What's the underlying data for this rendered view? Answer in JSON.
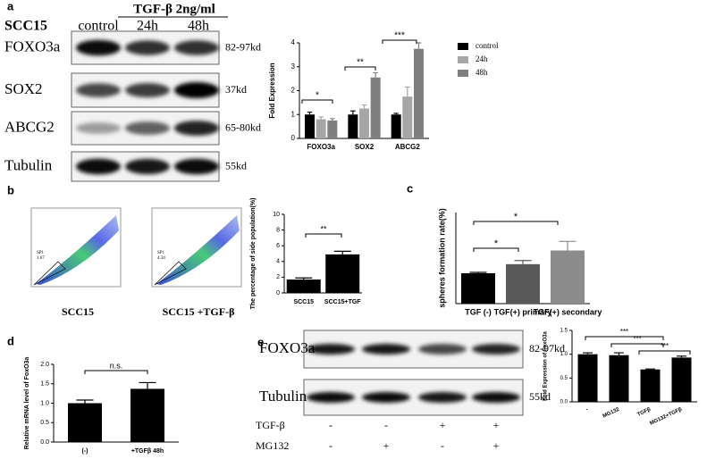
{
  "panel_labels": [
    "a",
    "b",
    "c",
    "d",
    "e"
  ],
  "blot_a": {
    "cell_line": "SCC15",
    "treatment": "TGF-β 2ng/ml",
    "lanes": [
      "control",
      "24h",
      "48h"
    ],
    "rows": [
      {
        "protein": "FOXO3a",
        "size": "82-97kd"
      },
      {
        "protein": "SOX2",
        "size": "37kd"
      },
      {
        "protein": "ABCG2",
        "size": "65-80kd"
      },
      {
        "protein": "Tubulin",
        "size": "55kd"
      }
    ]
  },
  "flow_b": {
    "plots": [
      {
        "label": "SCC15",
        "gate": "SP1",
        "percent": "1.67"
      },
      {
        "label": "SCC15 +TGF-β",
        "gate": "SP1",
        "percent": "4.34"
      }
    ]
  },
  "blot_e": {
    "rows": [
      {
        "protein": "FOXO3a",
        "size": "82-97kd"
      },
      {
        "protein": "Tubulin",
        "size": "55kd"
      }
    ],
    "conditions": [
      {
        "name": "TGF-β",
        "marks": [
          "-",
          "-",
          "+",
          "+"
        ]
      },
      {
        "name": "MG132",
        "marks": [
          "-",
          "+",
          "-",
          "+"
        ]
      }
    ]
  },
  "chart_data": [
    {
      "type": "bar",
      "y_label": "Fold Expression",
      "categories": [
        "FOXO3a",
        "SOX2",
        "ABCG2"
      ],
      "series": [
        {
          "name": "control",
          "color": "#000000",
          "values": [
            1.0,
            1.0,
            1.0
          ],
          "errors": [
            0.1,
            0.15,
            0.05
          ]
        },
        {
          "name": "24h",
          "color": "#a6a6a6",
          "values": [
            0.8,
            1.25,
            1.75
          ],
          "errors": [
            0.1,
            0.15,
            0.4
          ]
        },
        {
          "name": "48h",
          "color": "#7f7f7f",
          "values": [
            0.75,
            2.55,
            3.75
          ],
          "errors": [
            0.08,
            0.2,
            0.25
          ]
        }
      ],
      "ylim": [
        0,
        4
      ],
      "yticks": [
        0,
        1,
        2,
        3,
        4
      ],
      "annotations": [
        "*",
        "**",
        "***"
      ]
    },
    {
      "type": "bar",
      "y_label": "The percentage of side population(%)",
      "categories": [
        "SCC15",
        "SCC15+TGF"
      ],
      "values": [
        1.7,
        4.9
      ],
      "errors": [
        0.2,
        0.4
      ],
      "colors": [
        "#000000",
        "#000000"
      ],
      "ylim": [
        0,
        10
      ],
      "yticks": [
        0,
        2,
        4,
        6,
        8,
        10
      ],
      "annotations": [
        "**"
      ]
    },
    {
      "type": "bar",
      "y_label": "spheres formation rate(%)",
      "categories": [
        "TGF (-)",
        "TGF(+) primary",
        "TGF(+) secondary"
      ],
      "values": [
        1.0,
        1.3,
        1.75
      ],
      "errors": [
        0.03,
        0.12,
        0.3
      ],
      "colors": [
        "#000000",
        "#595959",
        "#8c8c8c"
      ],
      "ylim": [
        0,
        3
      ],
      "annotations": [
        "*",
        "*"
      ]
    },
    {
      "type": "bar",
      "y_label": "Relative mRNA level of FoxO3a",
      "categories": [
        "(-)",
        "+TGFβ 48h"
      ],
      "values": [
        1.0,
        1.37
      ],
      "errors": [
        0.08,
        0.16
      ],
      "colors": [
        "#000000",
        "#000000"
      ],
      "ylim": [
        0,
        2
      ],
      "yticks": [
        {
          "value": 0,
          "label": "0.0"
        },
        0.5,
        {
          "value": 1,
          "label": "1.0"
        },
        1.5,
        {
          "value": 2,
          "label": "2.0"
        }
      ],
      "annotations": [
        "n.s."
      ]
    },
    {
      "type": "bar",
      "y_label": "Fold Expression of FoxO3a",
      "categories": [
        "-",
        "MG132",
        "TGFβ",
        "MG132+TGFβ"
      ],
      "values": [
        1.0,
        0.98,
        0.68,
        0.93
      ],
      "errors": [
        0.03,
        0.05,
        0.01,
        0.03
      ],
      "colors": [
        "#000000",
        "#000000",
        "#000000",
        "#000000"
      ],
      "ylim": [
        0,
        1.5
      ],
      "yticks": [
        {
          "value": 0,
          "label": "0.0"
        },
        0.5,
        {
          "value": 1,
          "label": "1.0"
        },
        1.5
      ],
      "annotations": [
        "***",
        "***",
        "***"
      ]
    }
  ]
}
